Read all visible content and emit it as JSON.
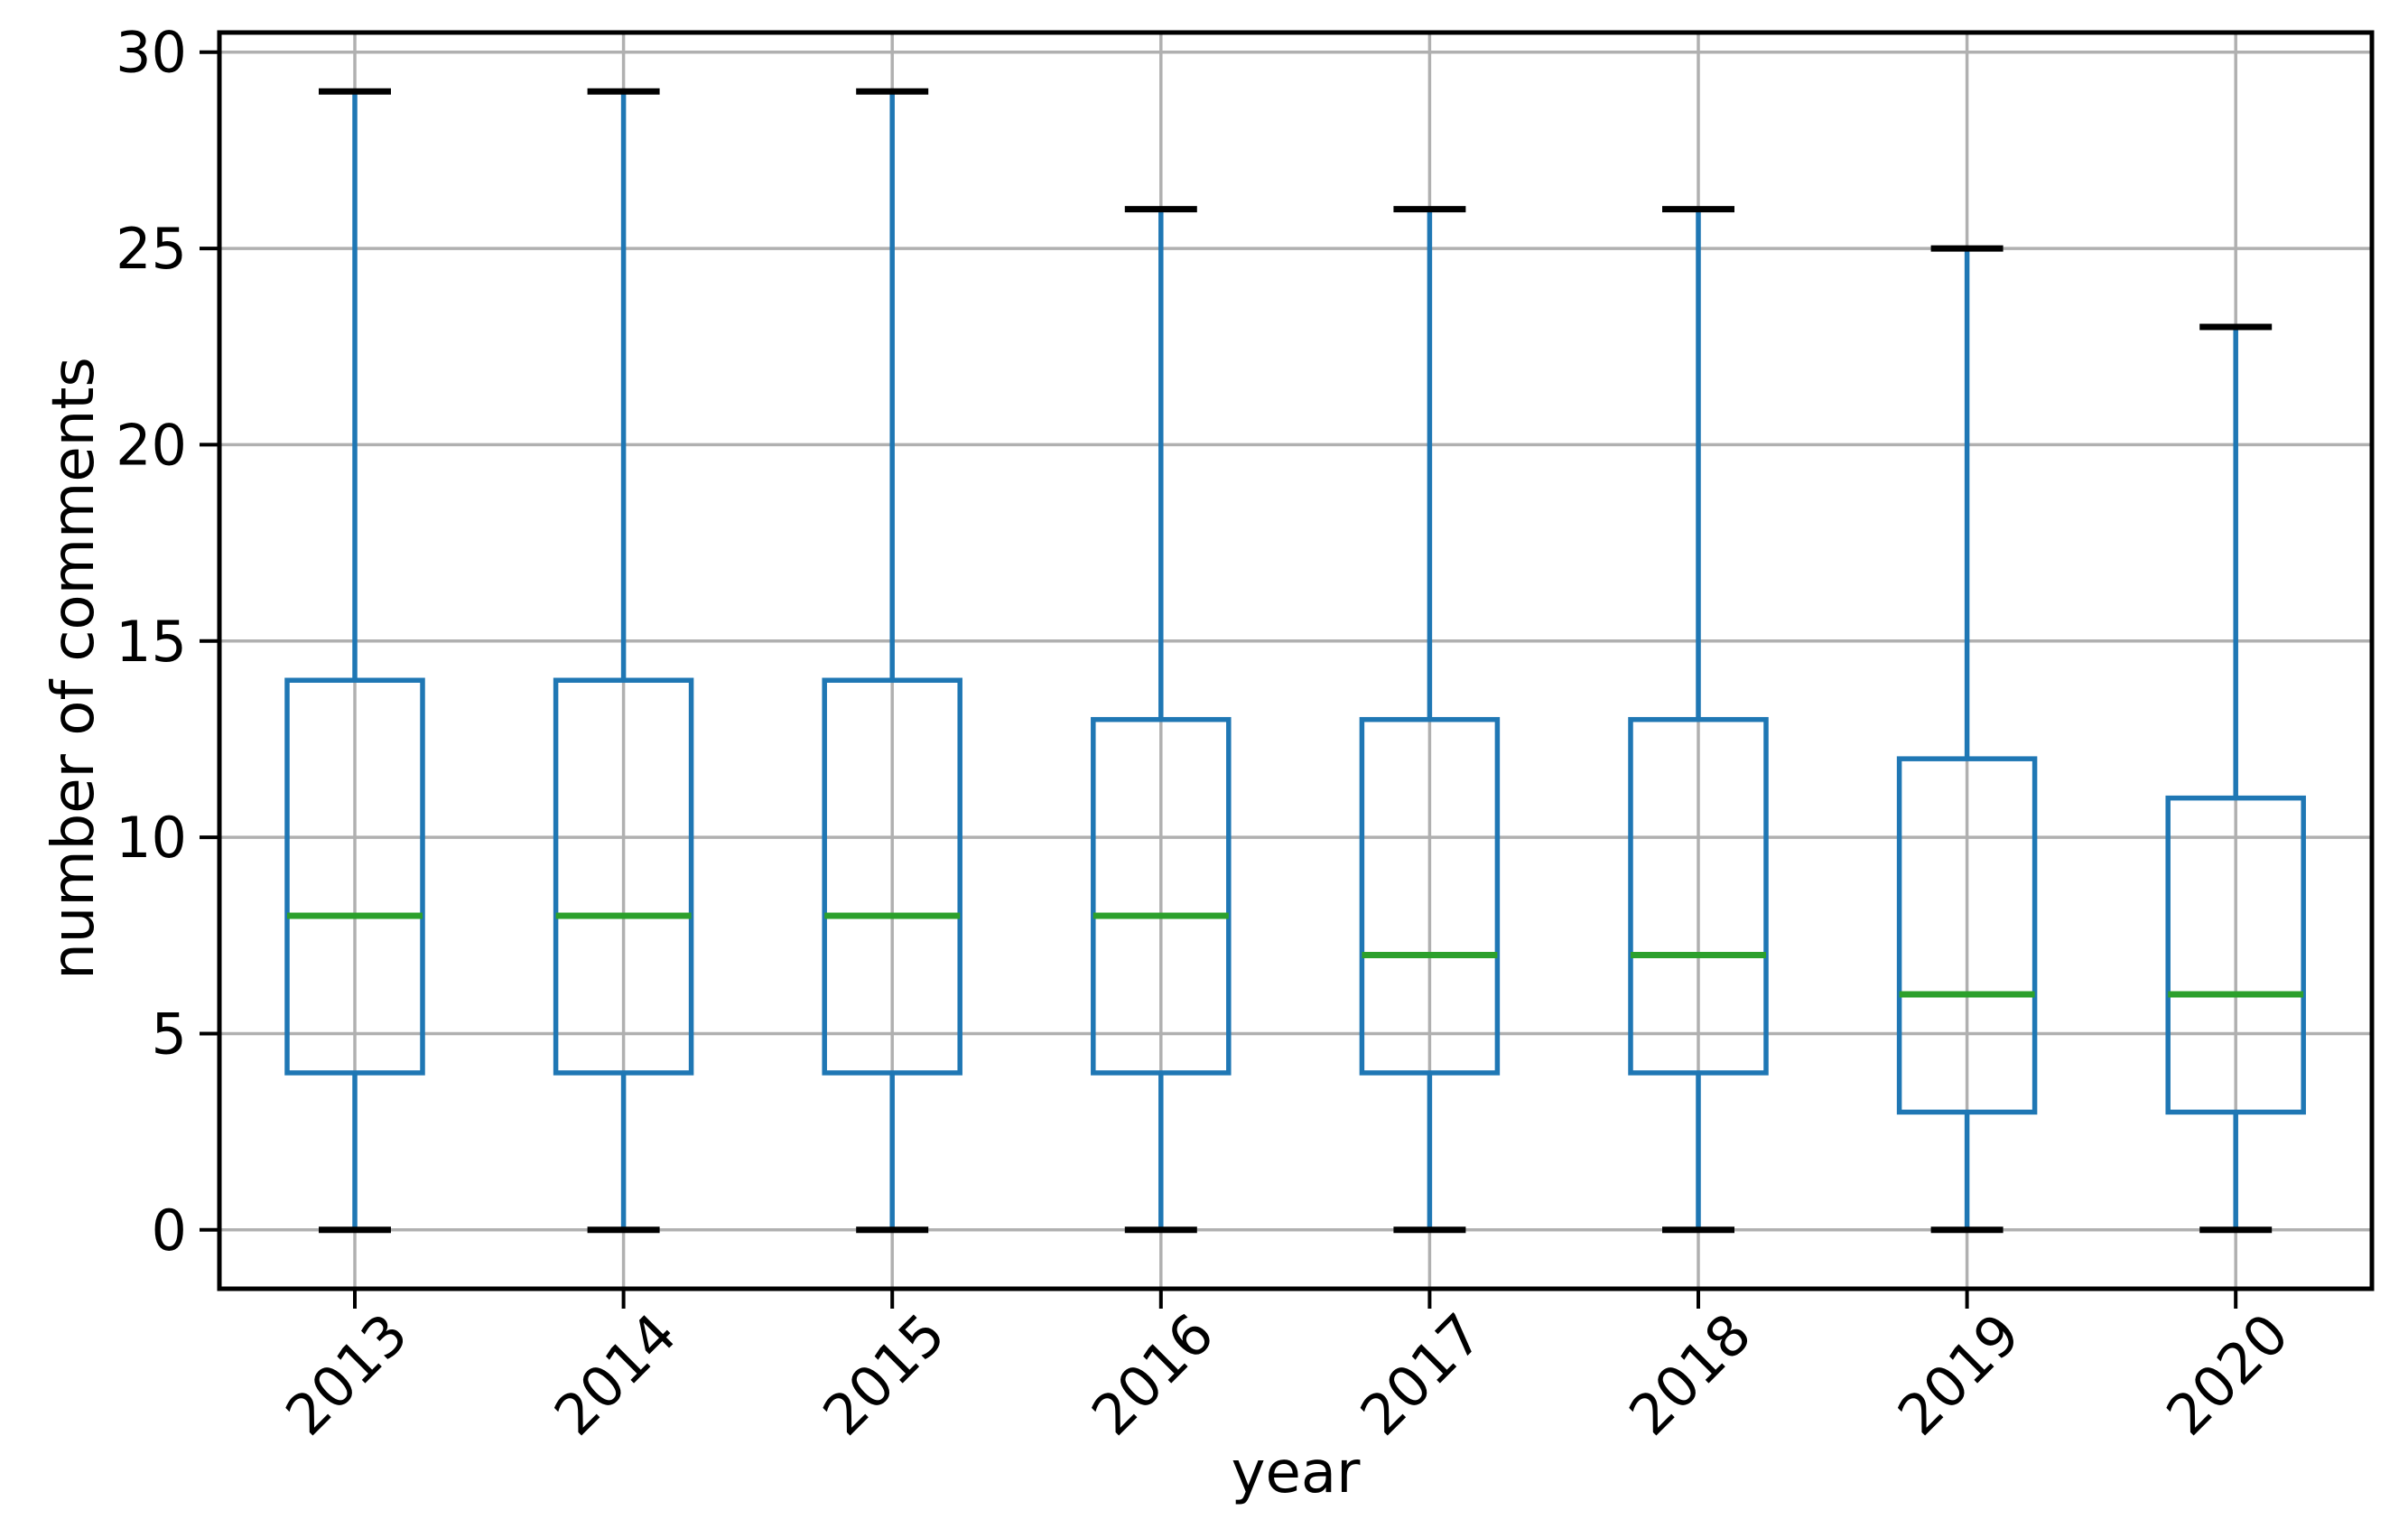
{
  "chart_data": {
    "type": "boxplot",
    "title": "",
    "xlabel": "year",
    "ylabel": "number of comments",
    "categories": [
      "2013",
      "2014",
      "2015",
      "2016",
      "2017",
      "2018",
      "2019",
      "2020"
    ],
    "series": [
      {
        "category": "2013",
        "whisker_low": 0,
        "q1": 4,
        "median": 8,
        "q3": 14,
        "whisker_high": 29
      },
      {
        "category": "2014",
        "whisker_low": 0,
        "q1": 4,
        "median": 8,
        "q3": 14,
        "whisker_high": 29
      },
      {
        "category": "2015",
        "whisker_low": 0,
        "q1": 4,
        "median": 8,
        "q3": 14,
        "whisker_high": 29
      },
      {
        "category": "2016",
        "whisker_low": 0,
        "q1": 4,
        "median": 8,
        "q3": 13,
        "whisker_high": 26
      },
      {
        "category": "2017",
        "whisker_low": 0,
        "q1": 4,
        "median": 7,
        "q3": 13,
        "whisker_high": 26
      },
      {
        "category": "2018",
        "whisker_low": 0,
        "q1": 4,
        "median": 7,
        "q3": 13,
        "whisker_high": 26
      },
      {
        "category": "2019",
        "whisker_low": 0,
        "q1": 3,
        "median": 6,
        "q3": 12,
        "whisker_high": 25
      },
      {
        "category": "2020",
        "whisker_low": 0,
        "q1": 3,
        "median": 6,
        "q3": 11,
        "whisker_high": 23
      }
    ],
    "yticks": [
      0,
      5,
      10,
      15,
      20,
      25,
      30
    ],
    "ylim": [
      -1.5,
      30.5
    ],
    "grid": true,
    "legend_position": "none",
    "colors": {
      "box": "#1f77b4",
      "whisker": "#1f77b4",
      "cap": "#000000",
      "median": "#2ca02c",
      "grid": "#b0b0b0",
      "spine": "#000000",
      "text": "#000000",
      "background": "#ffffff"
    }
  }
}
